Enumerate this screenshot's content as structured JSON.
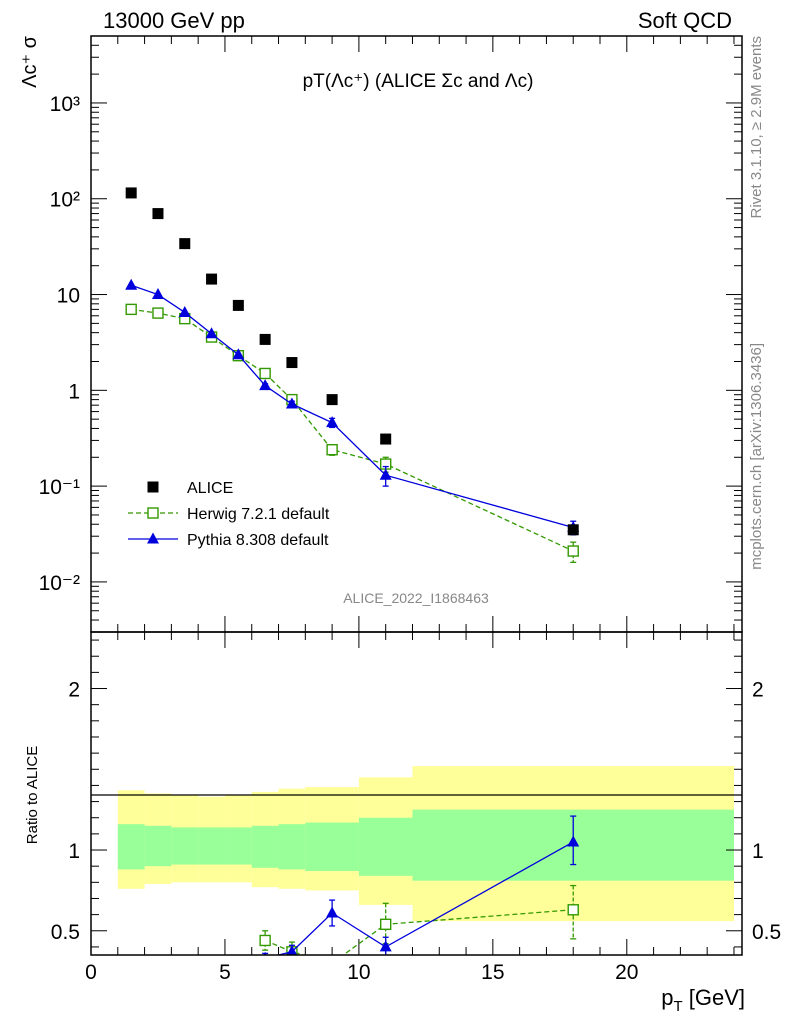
{
  "header": {
    "left": "13000 GeV pp",
    "right": "Soft QCD"
  },
  "side_labels": {
    "rivet": "Rivet 3.1.10, ≥ 2.9M events",
    "mcplots": "mcplots.cern.ch [arXiv:1306.3436]"
  },
  "chart_data": [
    {
      "type": "scatter",
      "title": "pT(Λc⁺) (ALICE Σc and Λc)",
      "ylabel": "Λc⁺ σ",
      "xlabel": "",
      "yscale": "log",
      "xlim": [
        0,
        24.3
      ],
      "ylim": [
        0.003,
        5000
      ],
      "yticks": [
        {
          "value": 0.01,
          "label": "10⁻²"
        },
        {
          "value": 0.1,
          "label": "10⁻¹"
        },
        {
          "value": 1,
          "label": "1"
        },
        {
          "value": 10,
          "label": "10"
        },
        {
          "value": 100,
          "label": "10²"
        },
        {
          "value": 1000,
          "label": "10³"
        }
      ],
      "watermark": "ALICE_2022_I1868463",
      "legend_position": "bottom-left",
      "series": [
        {
          "name": "ALICE",
          "color": "#000000",
          "marker": "square-filled",
          "x": [
            1.5,
            2.5,
            3.5,
            4.5,
            5.5,
            6.5,
            7.5,
            9,
            11,
            18
          ],
          "y": [
            115,
            70,
            34,
            14.5,
            7.7,
            3.4,
            1.95,
            0.8,
            0.31,
            0.035
          ]
        },
        {
          "name": "Herwig 7.2.1 default",
          "color": "#339900",
          "marker": "square-open",
          "line": "dashed",
          "x": [
            1.5,
            2.5,
            3.5,
            4.5,
            5.5,
            6.5,
            7.5,
            9,
            11,
            18
          ],
          "y": [
            7.0,
            6.4,
            5.6,
            3.6,
            2.3,
            1.5,
            0.8,
            0.24,
            0.17,
            0.021
          ],
          "yerr_low": [
            0,
            0,
            0,
            0,
            0,
            0.1,
            0.07,
            0.03,
            0.03,
            0.005
          ],
          "yerr_high": [
            0,
            0,
            0,
            0,
            0,
            0.1,
            0.07,
            0.03,
            0.03,
            0.005
          ]
        },
        {
          "name": "Pythia 8.308 default",
          "color": "#0000dd",
          "marker": "triangle-filled",
          "line": "solid",
          "x": [
            1.5,
            2.5,
            3.5,
            4.5,
            5.5,
            6.5,
            7.5,
            9,
            11,
            18
          ],
          "y": [
            12.5,
            10.0,
            6.5,
            3.9,
            2.35,
            1.12,
            0.72,
            0.46,
            0.13,
            0.037
          ],
          "yerr_low": [
            0,
            0,
            0,
            0,
            0,
            0.05,
            0.05,
            0.05,
            0.03,
            0.006
          ],
          "yerr_high": [
            0,
            0,
            0,
            0,
            0,
            0.05,
            0.05,
            0.05,
            0.03,
            0.006
          ]
        }
      ]
    },
    {
      "type": "scatter",
      "ylabel": "Ratio to ALICE",
      "xlabel": "p_T [GeV]",
      "xlim": [
        0,
        24.3
      ],
      "ylim": [
        0.35,
        2.35
      ],
      "xticks": [
        0,
        5,
        10,
        15,
        20
      ],
      "yticks": [
        0.5,
        1,
        2
      ],
      "reference_line": 1,
      "bands": {
        "x_edges": [
          1,
          2,
          3,
          4,
          5,
          6,
          7,
          8,
          10,
          12,
          24
        ],
        "yellow_low": [
          0.76,
          0.79,
          0.8,
          0.8,
          0.8,
          0.77,
          0.76,
          0.75,
          0.66,
          0.56
        ],
        "yellow_high": [
          1.37,
          1.35,
          1.34,
          1.33,
          1.34,
          1.36,
          1.38,
          1.39,
          1.45,
          1.52
        ],
        "green_low": [
          0.88,
          0.9,
          0.91,
          0.91,
          0.91,
          0.89,
          0.88,
          0.87,
          0.84,
          0.81
        ],
        "green_high": [
          1.16,
          1.15,
          1.14,
          1.14,
          1.14,
          1.15,
          1.16,
          1.17,
          1.2,
          1.25
        ]
      },
      "series": [
        {
          "name": "Herwig 7.2.1 default",
          "color": "#339900",
          "marker": "square-open",
          "line": "dashed",
          "x": [
            6.5,
            7.5,
            9,
            11,
            18
          ],
          "y": [
            0.44,
            0.37,
            0.3,
            0.54,
            0.63
          ],
          "yerr_low": [
            0.06,
            0.06,
            0.04,
            0.12,
            0.18
          ],
          "yerr_high": [
            0.06,
            0.06,
            0.04,
            0.13,
            0.15
          ]
        },
        {
          "name": "Pythia 8.308 default",
          "color": "#0000dd",
          "marker": "triangle-filled",
          "line": "solid",
          "x": [
            6.5,
            7.5,
            9,
            11,
            18
          ],
          "y": [
            0.33,
            0.37,
            0.61,
            0.4,
            1.05
          ],
          "yerr_low": [
            0.03,
            0.04,
            0.08,
            0.06,
            0.14
          ],
          "yerr_high": [
            0.03,
            0.04,
            0.08,
            0.06,
            0.16
          ]
        }
      ]
    }
  ]
}
